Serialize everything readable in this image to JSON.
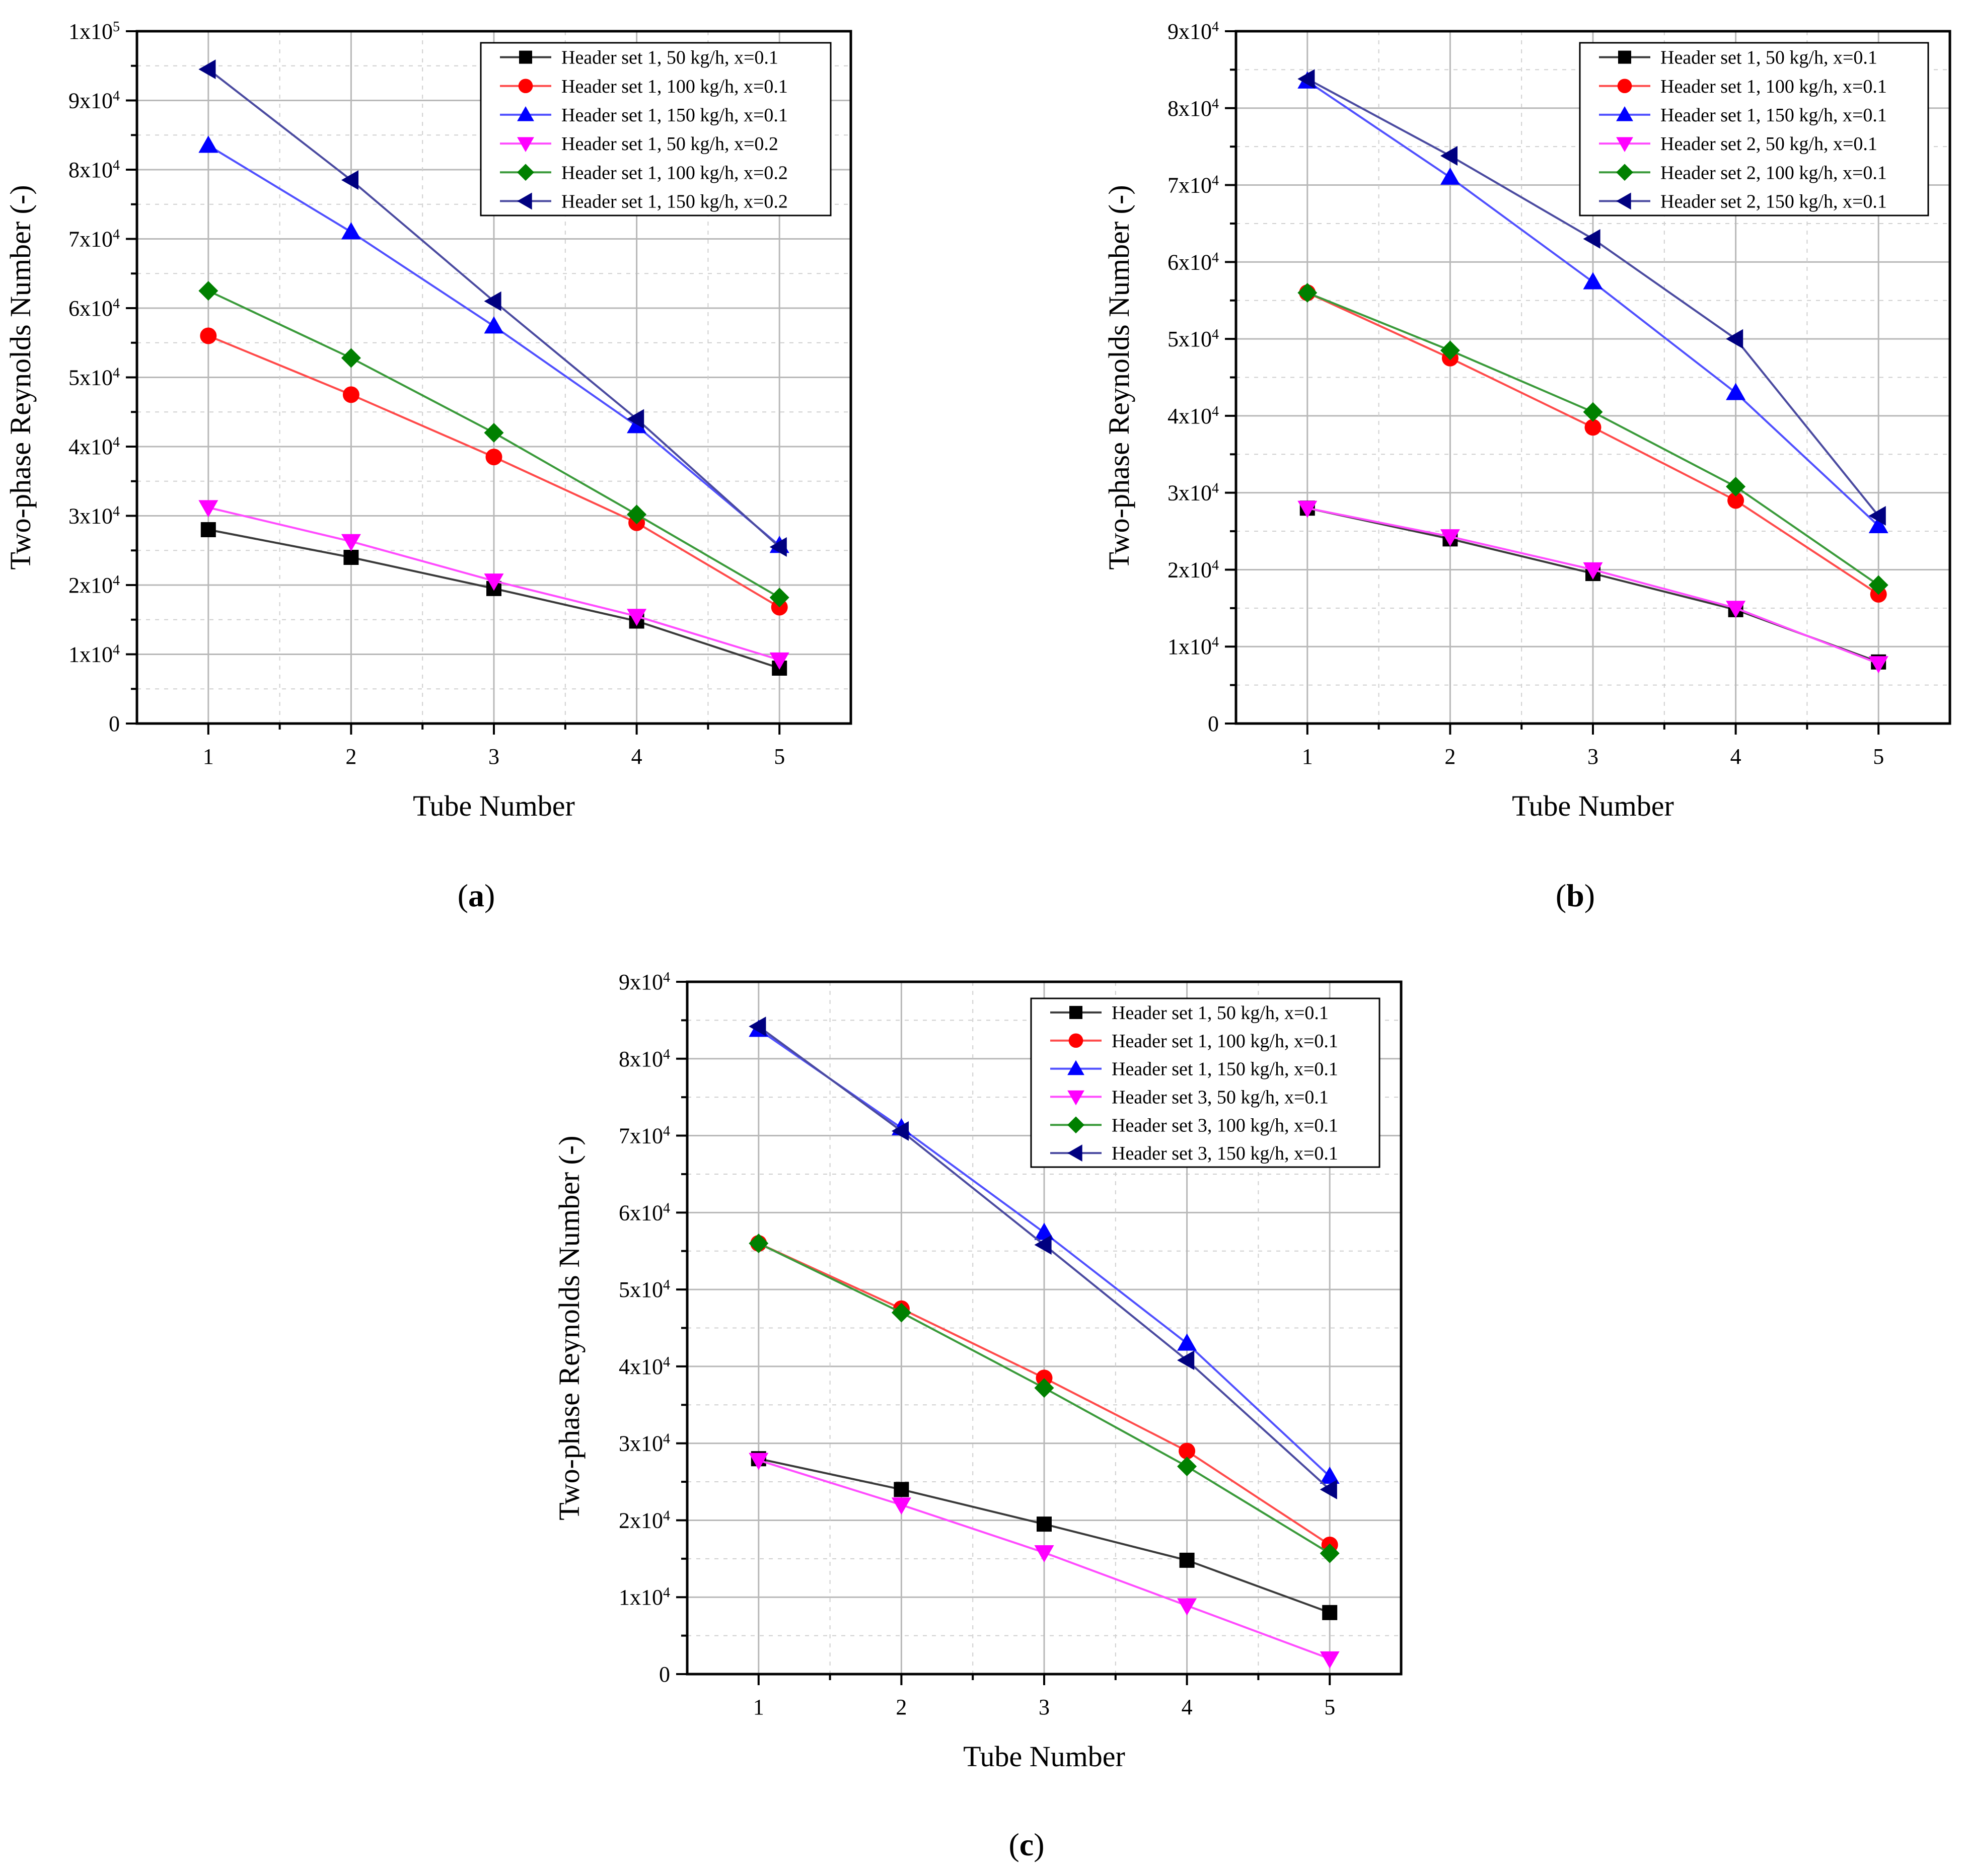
{
  "chart_data": [
    {
      "id": "a",
      "type": "line",
      "panel_label": "(a)",
      "xlabel": "Tube Number",
      "ylabel": "Two-phase Reynolds Number (-)",
      "x": [
        1,
        2,
        3,
        4,
        5
      ],
      "x_tick_labels": [
        "1",
        "2",
        "3",
        "4",
        "5"
      ],
      "xlim": [
        0.5,
        5.5
      ],
      "ylim": [
        0,
        100000
      ],
      "y_ticks": [
        0,
        10000,
        20000,
        30000,
        40000,
        50000,
        60000,
        70000,
        80000,
        90000,
        100000
      ],
      "y_tick_labels": [
        {
          "mantissa": "0",
          "exp": ""
        },
        {
          "mantissa": "1x10",
          "exp": "4"
        },
        {
          "mantissa": "2x10",
          "exp": "4"
        },
        {
          "mantissa": "3x10",
          "exp": "4"
        },
        {
          "mantissa": "4x10",
          "exp": "4"
        },
        {
          "mantissa": "5x10",
          "exp": "4"
        },
        {
          "mantissa": "6x10",
          "exp": "4"
        },
        {
          "mantissa": "7x10",
          "exp": "4"
        },
        {
          "mantissa": "8x10",
          "exp": "4"
        },
        {
          "mantissa": "9x10",
          "exp": "4"
        },
        {
          "mantissa": "1x10",
          "exp": "5"
        }
      ],
      "grid": true,
      "legend_position": "top-right",
      "series": [
        {
          "name": "Header set 1, 50 kg/h, x=0.1",
          "color": "#000000",
          "line_color": "#3a3a3a",
          "marker": "square",
          "values": [
            28000,
            24000,
            19500,
            14800,
            8000
          ]
        },
        {
          "name": "Header set 1, 100 kg/h, x=0.1",
          "color": "#ff0000",
          "line_color": "#ff4a4a",
          "marker": "circle",
          "values": [
            56000,
            47500,
            38500,
            29000,
            16800
          ]
        },
        {
          "name": "Header set 1, 150 kg/h, x=0.1",
          "color": "#0000ff",
          "line_color": "#5050ff",
          "marker": "triangle-up",
          "values": [
            83500,
            71000,
            57400,
            43000,
            25700
          ]
        },
        {
          "name": "Header set 1, 50 kg/h, x=0.2",
          "color": "#ff00ff",
          "line_color": "#ff4cff",
          "marker": "triangle-down",
          "values": [
            31200,
            26300,
            20600,
            15500,
            9200
          ]
        },
        {
          "name": "Header set 1, 100 kg/h, x=0.2",
          "color": "#008000",
          "line_color": "#3a9a3a",
          "marker": "diamond",
          "values": [
            62500,
            52800,
            42000,
            30200,
            18200
          ]
        },
        {
          "name": "Header set 1, 150 kg/h, x=0.2",
          "color": "#000080",
          "line_color": "#4a4aa0",
          "marker": "triangle-left",
          "values": [
            94500,
            78500,
            61000,
            44000,
            25500
          ]
        }
      ]
    },
    {
      "id": "b",
      "type": "line",
      "panel_label": "(b)",
      "xlabel": "Tube Number",
      "ylabel": "Two-phase Reynolds Number (-)",
      "x": [
        1,
        2,
        3,
        4,
        5
      ],
      "x_tick_labels": [
        "1",
        "2",
        "3",
        "4",
        "5"
      ],
      "xlim": [
        0.5,
        5.5
      ],
      "ylim": [
        0,
        90000
      ],
      "y_ticks": [
        0,
        10000,
        20000,
        30000,
        40000,
        50000,
        60000,
        70000,
        80000,
        90000
      ],
      "y_tick_labels": [
        {
          "mantissa": "0",
          "exp": ""
        },
        {
          "mantissa": "1x10",
          "exp": "4"
        },
        {
          "mantissa": "2x10",
          "exp": "4"
        },
        {
          "mantissa": "3x10",
          "exp": "4"
        },
        {
          "mantissa": "4x10",
          "exp": "4"
        },
        {
          "mantissa": "5x10",
          "exp": "4"
        },
        {
          "mantissa": "6x10",
          "exp": "4"
        },
        {
          "mantissa": "7x10",
          "exp": "4"
        },
        {
          "mantissa": "8x10",
          "exp": "4"
        },
        {
          "mantissa": "9x10",
          "exp": "4"
        }
      ],
      "grid": true,
      "legend_position": "top-right",
      "series": [
        {
          "name": "Header set 1, 50 kg/h, x=0.1",
          "color": "#000000",
          "line_color": "#3a3a3a",
          "marker": "square",
          "values": [
            28000,
            24000,
            19500,
            14800,
            8000
          ]
        },
        {
          "name": "Header set 1, 100 kg/h, x=0.1",
          "color": "#ff0000",
          "line_color": "#ff4a4a",
          "marker": "circle",
          "values": [
            56000,
            47500,
            38500,
            29000,
            16800
          ]
        },
        {
          "name": "Header set 1, 150 kg/h, x=0.1",
          "color": "#0000ff",
          "line_color": "#5050ff",
          "marker": "triangle-up",
          "values": [
            83500,
            71000,
            57400,
            43000,
            25700
          ]
        },
        {
          "name": "Header set 2, 50 kg/h, x=0.1",
          "color": "#ff00ff",
          "line_color": "#ff4cff",
          "marker": "triangle-down",
          "values": [
            28000,
            24300,
            20000,
            15000,
            7800
          ]
        },
        {
          "name": "Header set 2, 100 kg/h, x=0.1",
          "color": "#008000",
          "line_color": "#3a9a3a",
          "marker": "diamond",
          "values": [
            56000,
            48500,
            40500,
            30800,
            18000
          ]
        },
        {
          "name": "Header set 2, 150 kg/h, x=0.1",
          "color": "#000080",
          "line_color": "#4a4aa0",
          "marker": "triangle-left",
          "values": [
            83800,
            73800,
            63000,
            50000,
            27000
          ]
        }
      ]
    },
    {
      "id": "c",
      "type": "line",
      "panel_label": "(c)",
      "xlabel": "Tube Number",
      "ylabel": "Two-phase Reynolds Number (-)",
      "x": [
        1,
        2,
        3,
        4,
        5
      ],
      "x_tick_labels": [
        "1",
        "2",
        "3",
        "4",
        "5"
      ],
      "xlim": [
        0.5,
        5.5
      ],
      "ylim": [
        0,
        90000
      ],
      "y_ticks": [
        0,
        10000,
        20000,
        30000,
        40000,
        50000,
        60000,
        70000,
        80000,
        90000
      ],
      "y_tick_labels": [
        {
          "mantissa": "0",
          "exp": ""
        },
        {
          "mantissa": "1x10",
          "exp": "4"
        },
        {
          "mantissa": "2x10",
          "exp": "4"
        },
        {
          "mantissa": "3x10",
          "exp": "4"
        },
        {
          "mantissa": "4x10",
          "exp": "4"
        },
        {
          "mantissa": "5x10",
          "exp": "4"
        },
        {
          "mantissa": "6x10",
          "exp": "4"
        },
        {
          "mantissa": "7x10",
          "exp": "4"
        },
        {
          "mantissa": "8x10",
          "exp": "4"
        },
        {
          "mantissa": "9x10",
          "exp": "4"
        }
      ],
      "grid": true,
      "legend_position": "top-right",
      "series": [
        {
          "name": "Header set 1, 50 kg/h, x=0.1",
          "color": "#000000",
          "line_color": "#3a3a3a",
          "marker": "square",
          "values": [
            28000,
            24000,
            19500,
            14800,
            8000
          ]
        },
        {
          "name": "Header set 1, 100 kg/h, x=0.1",
          "color": "#ff0000",
          "line_color": "#ff4a4a",
          "marker": "circle",
          "values": [
            56000,
            47500,
            38500,
            29000,
            16800
          ]
        },
        {
          "name": "Header set 1, 150 kg/h, x=0.1",
          "color": "#0000ff",
          "line_color": "#5050ff",
          "marker": "triangle-up",
          "values": [
            83800,
            71000,
            57400,
            43000,
            25700
          ]
        },
        {
          "name": "Header set 3, 50 kg/h, x=0.1",
          "color": "#ff00ff",
          "line_color": "#ff4cff",
          "marker": "triangle-down",
          "values": [
            27800,
            22000,
            15800,
            8900,
            2000
          ]
        },
        {
          "name": "Header set 3, 100 kg/h, x=0.1",
          "color": "#008000",
          "line_color": "#3a9a3a",
          "marker": "diamond",
          "values": [
            56000,
            47000,
            37200,
            27000,
            15700
          ]
        },
        {
          "name": "Header set 3, 150 kg/h, x=0.1",
          "color": "#000080",
          "line_color": "#4a4aa0",
          "marker": "triangle-left",
          "values": [
            84200,
            70600,
            55800,
            40800,
            24000
          ]
        }
      ]
    }
  ]
}
